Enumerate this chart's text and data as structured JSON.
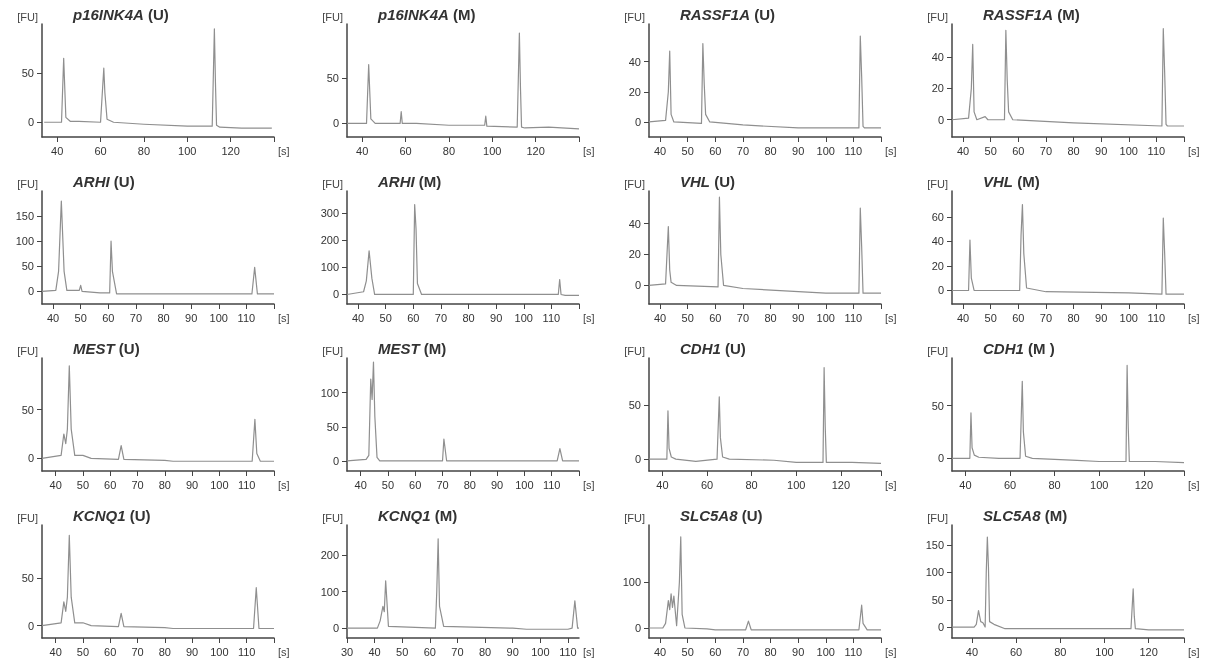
{
  "chart_data": [
    {
      "type": "line",
      "title": "p16INK4A (U)",
      "ylabel": "[FU]",
      "xlabel": "[s]",
      "color": "#8f8f8f",
      "xlim": [
        33,
        140
      ],
      "xticks": [
        40,
        60,
        80,
        100,
        120,
        {
          "value": 140,
          "label": null
        }
      ],
      "ylim": [
        -15,
        100
      ],
      "yticks": [
        0,
        50
      ],
      "x": [
        34,
        42,
        43,
        44,
        46,
        50,
        60,
        61.5,
        62,
        63,
        66,
        80,
        100,
        111.5,
        112.5,
        113,
        113.5,
        115,
        125,
        139
      ],
      "values": [
        0,
        0,
        65,
        5,
        1,
        1,
        0,
        55,
        30,
        3,
        0,
        -2,
        -4,
        -4,
        95,
        40,
        -3,
        -5,
        -6,
        -6
      ]
    },
    {
      "type": "line",
      "title": "p16INK4A (M)",
      "ylabel": "[FU]",
      "xlabel": "[s]",
      "color": "#8f8f8f",
      "xlim": [
        33,
        140
      ],
      "xticks": [
        40,
        60,
        80,
        100,
        120,
        {
          "value": 140,
          "label": null
        }
      ],
      "ylim": [
        -15,
        110
      ],
      "yticks": [
        0,
        50
      ],
      "x": [
        33,
        42,
        43,
        44,
        46,
        57.5,
        58,
        58.5,
        65,
        80,
        96.5,
        97,
        97.5,
        111.5,
        112.5,
        113,
        113.5,
        115,
        126,
        140
      ],
      "values": [
        0,
        0,
        65,
        5,
        0,
        0,
        13,
        0,
        0,
        -2,
        -2,
        8,
        -3,
        -4,
        100,
        40,
        -4,
        -5,
        -4,
        -6
      ]
    },
    {
      "type": "line",
      "title": "RASSF1A (U)",
      "ylabel": "[FU]",
      "xlabel": "[s]",
      "color": "#8f8f8f",
      "xlim": [
        36,
        120
      ],
      "xticks": [
        40,
        50,
        60,
        70,
        80,
        90,
        100,
        110,
        {
          "value": 120,
          "label": null
        }
      ],
      "ylim": [
        -10,
        65
      ],
      "yticks": [
        0,
        20,
        40
      ],
      "x": [
        36,
        42,
        43,
        43.5,
        44,
        45,
        55,
        55.5,
        56,
        56.5,
        58,
        70,
        90,
        112,
        112.5,
        113,
        113.5,
        114,
        120
      ],
      "values": [
        0,
        1,
        20,
        47,
        5,
        0,
        -1,
        52,
        25,
        5,
        0,
        -2,
        -4,
        -4,
        57,
        30,
        -3,
        -4,
        -4
      ]
    },
    {
      "type": "line",
      "title": "RASSF1A (M)",
      "ylabel": "[FU]",
      "xlabel": "[s]",
      "color": "#8f8f8f",
      "xlim": [
        36,
        120
      ],
      "xticks": [
        40,
        50,
        60,
        70,
        80,
        90,
        100,
        110,
        {
          "value": 120,
          "label": null
        }
      ],
      "ylim": [
        -11,
        61
      ],
      "yticks": [
        0,
        20,
        40
      ],
      "x": [
        36,
        42,
        43,
        43.5,
        44,
        45,
        48,
        49,
        55,
        55.5,
        56,
        56.5,
        58,
        80,
        112,
        112.5,
        113,
        113.5,
        114,
        120
      ],
      "values": [
        0,
        1,
        20,
        48,
        5,
        0,
        2,
        0,
        0,
        57,
        25,
        5,
        0,
        -2,
        -4,
        58,
        30,
        -3,
        -4,
        -4
      ]
    },
    {
      "type": "line",
      "title": "ARHI (U)",
      "ylabel": "[FU]",
      "xlabel": "[s]",
      "color": "#8f8f8f",
      "xlim": [
        36,
        120
      ],
      "xticks": [
        40,
        50,
        60,
        70,
        80,
        90,
        100,
        110,
        {
          "value": 120,
          "label": null
        }
      ],
      "ylim": [
        -25,
        200
      ],
      "yticks": [
        0,
        50,
        100,
        150
      ],
      "x": [
        36,
        41,
        42,
        43,
        44,
        45,
        49.5,
        50,
        50.5,
        57,
        60.5,
        61,
        61.5,
        63,
        80,
        112,
        113,
        114,
        120
      ],
      "values": [
        0,
        2,
        40,
        180,
        40,
        2,
        2,
        12,
        0,
        -3,
        -3,
        100,
        40,
        -5,
        -5,
        -5,
        48,
        -5,
        -5
      ]
    },
    {
      "type": "line",
      "title": "ARHI (M)",
      "ylabel": "[FU]",
      "xlabel": "[s]",
      "color": "#8f8f8f",
      "xlim": [
        36,
        120
      ],
      "xticks": [
        40,
        50,
        60,
        70,
        80,
        90,
        100,
        110,
        {
          "value": 120,
          "label": null
        }
      ],
      "ylim": [
        -35,
        380
      ],
      "yticks": [
        0,
        100,
        200,
        300
      ],
      "x": [
        36,
        42,
        43,
        44,
        45,
        46,
        60,
        60.5,
        61,
        61.5,
        63,
        100,
        112.5,
        113,
        113.5,
        115,
        120
      ],
      "values": [
        0,
        10,
        50,
        160,
        60,
        0,
        0,
        330,
        240,
        40,
        0,
        0,
        0,
        55,
        0,
        -3,
        -3
      ]
    },
    {
      "type": "line",
      "title": "VHL (U)",
      "ylabel": "[FU]",
      "xlabel": "[s]",
      "color": "#8f8f8f",
      "xlim": [
        36,
        120
      ],
      "xticks": [
        40,
        50,
        60,
        70,
        80,
        90,
        100,
        110,
        {
          "value": 120,
          "label": null
        }
      ],
      "ylim": [
        -12,
        61
      ],
      "yticks": [
        0,
        20,
        40
      ],
      "x": [
        36,
        42,
        43,
        43.5,
        44,
        46,
        61,
        61.5,
        62,
        63,
        70,
        100,
        112,
        112.5,
        113,
        113.5,
        114,
        120
      ],
      "values": [
        0,
        1,
        38,
        10,
        2,
        0,
        -1,
        57,
        20,
        0,
        -2,
        -5,
        -5,
        50,
        25,
        -5,
        -5,
        -5
      ]
    },
    {
      "type": "line",
      "title": "VHL (M)",
      "ylabel": "[FU]",
      "xlabel": "[s]",
      "color": "#8f8f8f",
      "xlim": [
        36,
        120
      ],
      "xticks": [
        40,
        50,
        60,
        70,
        80,
        90,
        100,
        110,
        {
          "value": 120,
          "label": null
        }
      ],
      "ylim": [
        -11,
        81
      ],
      "yticks": [
        0,
        20,
        40,
        60
      ],
      "x": [
        36,
        42,
        42.5,
        43,
        44,
        46,
        60.5,
        61,
        61.5,
        62,
        63,
        70,
        100,
        112,
        112.5,
        113,
        113.5,
        114,
        120
      ],
      "values": [
        0,
        0,
        41,
        10,
        0,
        0,
        0,
        45,
        70,
        30,
        2,
        -1,
        -2,
        -3,
        59,
        30,
        -3,
        -3,
        -3
      ]
    },
    {
      "type": "line",
      "title": "MEST (U)",
      "ylabel": "[FU]",
      "xlabel": "[s]",
      "color": "#8f8f8f",
      "xlim": [
        35,
        120
      ],
      "xticks": [
        40,
        50,
        60,
        70,
        80,
        90,
        100,
        110,
        {
          "value": 120,
          "label": null
        }
      ],
      "ylim": [
        -13,
        103
      ],
      "yticks": [
        0,
        50
      ],
      "x": [
        35,
        42,
        43,
        43.7,
        44.3,
        45,
        45.7,
        47,
        50,
        53,
        63,
        64,
        65,
        80,
        83,
        112,
        113,
        113.7,
        115,
        120
      ],
      "values": [
        0,
        3,
        25,
        15,
        30,
        95,
        30,
        3,
        3,
        0,
        -1,
        13,
        -1,
        -2,
        -3,
        -3,
        40,
        5,
        -3,
        -3
      ]
    },
    {
      "type": "line",
      "title": "MEST (M)",
      "ylabel": "[FU]",
      "xlabel": "[s]",
      "color": "#8f8f8f",
      "xlim": [
        35,
        120
      ],
      "xticks": [
        40,
        50,
        60,
        70,
        80,
        90,
        100,
        110,
        {
          "value": 120,
          "label": null
        }
      ],
      "ylim": [
        -15,
        151
      ],
      "yticks": [
        0,
        50,
        100
      ],
      "x": [
        35,
        42,
        43,
        43.7,
        44.2,
        44.7,
        45.2,
        46,
        47,
        60,
        70,
        70.5,
        71.5,
        90,
        112,
        113,
        114,
        120
      ],
      "values": [
        0,
        2,
        8,
        120,
        90,
        145,
        65,
        5,
        0,
        0,
        0,
        32,
        0,
        0,
        0,
        18,
        0,
        0
      ]
    },
    {
      "type": "line",
      "title": "CDH1 (U)",
      "ylabel": "[FU]",
      "xlabel": "[s]",
      "color": "#8f8f8f",
      "xlim": [
        34,
        138
      ],
      "xticks": [
        40,
        60,
        80,
        100,
        120,
        {
          "value": 138,
          "label": null
        }
      ],
      "ylim": [
        -11,
        94
      ],
      "yticks": [
        0,
        50
      ],
      "x": [
        34,
        42,
        42.5,
        43,
        44,
        46,
        55,
        64.5,
        65.5,
        66,
        67,
        70,
        90,
        100,
        112,
        112.5,
        113,
        113.5,
        114,
        125,
        138
      ],
      "values": [
        0,
        0,
        45,
        10,
        2,
        0,
        -2,
        0,
        58,
        20,
        2,
        0,
        -1,
        -3,
        -3,
        85,
        30,
        -3,
        -3,
        -3,
        -4
      ]
    },
    {
      "type": "line",
      "title": "CDH1 (M )",
      "ylabel": "[FU]",
      "xlabel": "[s]",
      "color": "#8f8f8f",
      "xlim": [
        34,
        138
      ],
      "xticks": [
        40,
        60,
        80,
        100,
        120,
        {
          "value": 138,
          "label": null
        }
      ],
      "ylim": [
        -12,
        95
      ],
      "yticks": [
        0,
        50
      ],
      "x": [
        34,
        42,
        42.5,
        43,
        44,
        46,
        55,
        64.5,
        65.5,
        66,
        67,
        70,
        90,
        100,
        112,
        112.5,
        113,
        113.5,
        114,
        125,
        138
      ],
      "values": [
        0,
        0,
        43,
        10,
        3,
        1,
        0,
        0,
        73,
        25,
        2,
        0,
        -2,
        -3,
        -3,
        88,
        30,
        -3,
        -3,
        -3,
        -4
      ]
    },
    {
      "type": "line",
      "title": "KCNQ1 (U)",
      "ylabel": "[FU]",
      "xlabel": "[s]",
      "color": "#8f8f8f",
      "xlim": [
        35,
        120
      ],
      "xticks": [
        40,
        50,
        60,
        70,
        80,
        90,
        100,
        110,
        {
          "value": 120,
          "label": null
        }
      ],
      "ylim": [
        -13,
        106
      ],
      "yticks": [
        0,
        50
      ],
      "x": [
        35,
        42,
        43,
        43.7,
        44.3,
        45,
        45.7,
        47,
        50,
        53,
        63,
        64,
        65,
        80,
        83,
        112.5,
        113.5,
        114.5,
        120
      ],
      "values": [
        0,
        3,
        25,
        15,
        30,
        95,
        30,
        3,
        3,
        0,
        -1,
        13,
        -1,
        -2,
        -3,
        -3,
        40,
        -3,
        -3
      ]
    },
    {
      "type": "line",
      "title": "KCNQ1 (M)",
      "ylabel": "[FU]",
      "xlabel": "[s]",
      "color": "#8f8f8f",
      "xlim": [
        30,
        114
      ],
      "xticks": [
        30,
        40,
        50,
        60,
        70,
        80,
        90,
        100,
        110
      ],
      "ylim": [
        -27,
        283
      ],
      "yticks": [
        0,
        100,
        200
      ],
      "x": [
        30,
        41,
        42,
        43,
        43.5,
        44,
        45,
        62,
        62.5,
        63,
        63.5,
        65,
        90,
        95,
        100,
        110,
        111.5,
        112.5,
        113.5,
        114
      ],
      "values": [
        0,
        0,
        20,
        60,
        45,
        130,
        5,
        0,
        100,
        245,
        60,
        5,
        0,
        -3,
        -3,
        -3,
        0,
        75,
        0,
        0
      ]
    },
    {
      "type": "line",
      "title": "SLC5A8 (U)",
      "ylabel": "[FU]",
      "xlabel": "[s]",
      "color": "#8f8f8f",
      "xlim": [
        36,
        120
      ],
      "xticks": [
        40,
        50,
        60,
        70,
        80,
        90,
        100,
        110,
        {
          "value": 120,
          "label": null
        }
      ],
      "ylim": [
        -22,
        226
      ],
      "yticks": [
        0,
        100
      ],
      "x": [
        36,
        41,
        42,
        43,
        43.5,
        44,
        44.5,
        45,
        46,
        47,
        47.5,
        48,
        49,
        57,
        60,
        71,
        72,
        73,
        112,
        113,
        113.5,
        115,
        120
      ],
      "values": [
        0,
        0,
        10,
        60,
        40,
        75,
        45,
        70,
        5,
        100,
        200,
        30,
        0,
        -2,
        -4,
        -4,
        15,
        -4,
        -4,
        50,
        10,
        -4,
        -4
      ]
    },
    {
      "type": "line",
      "title": "SLC5A8 (M)",
      "ylabel": "[FU]",
      "xlabel": "[s]",
      "color": "#8f8f8f",
      "xlim": [
        31,
        136
      ],
      "xticks": [
        40,
        60,
        80,
        100,
        120,
        {
          "value": 136,
          "label": null
        }
      ],
      "ylim": [
        -20,
        187
      ],
      "yticks": [
        0,
        50,
        100,
        150
      ],
      "x": [
        31,
        41,
        42,
        43,
        44,
        45,
        46,
        46.5,
        47,
        47.5,
        48,
        50,
        55,
        100,
        112,
        113,
        113.5,
        114,
        120,
        130,
        136
      ],
      "values": [
        0,
        0,
        5,
        30,
        10,
        8,
        0,
        100,
        165,
        110,
        10,
        5,
        -3,
        -3,
        -3,
        70,
        20,
        -3,
        -5,
        -5,
        -5
      ]
    }
  ]
}
